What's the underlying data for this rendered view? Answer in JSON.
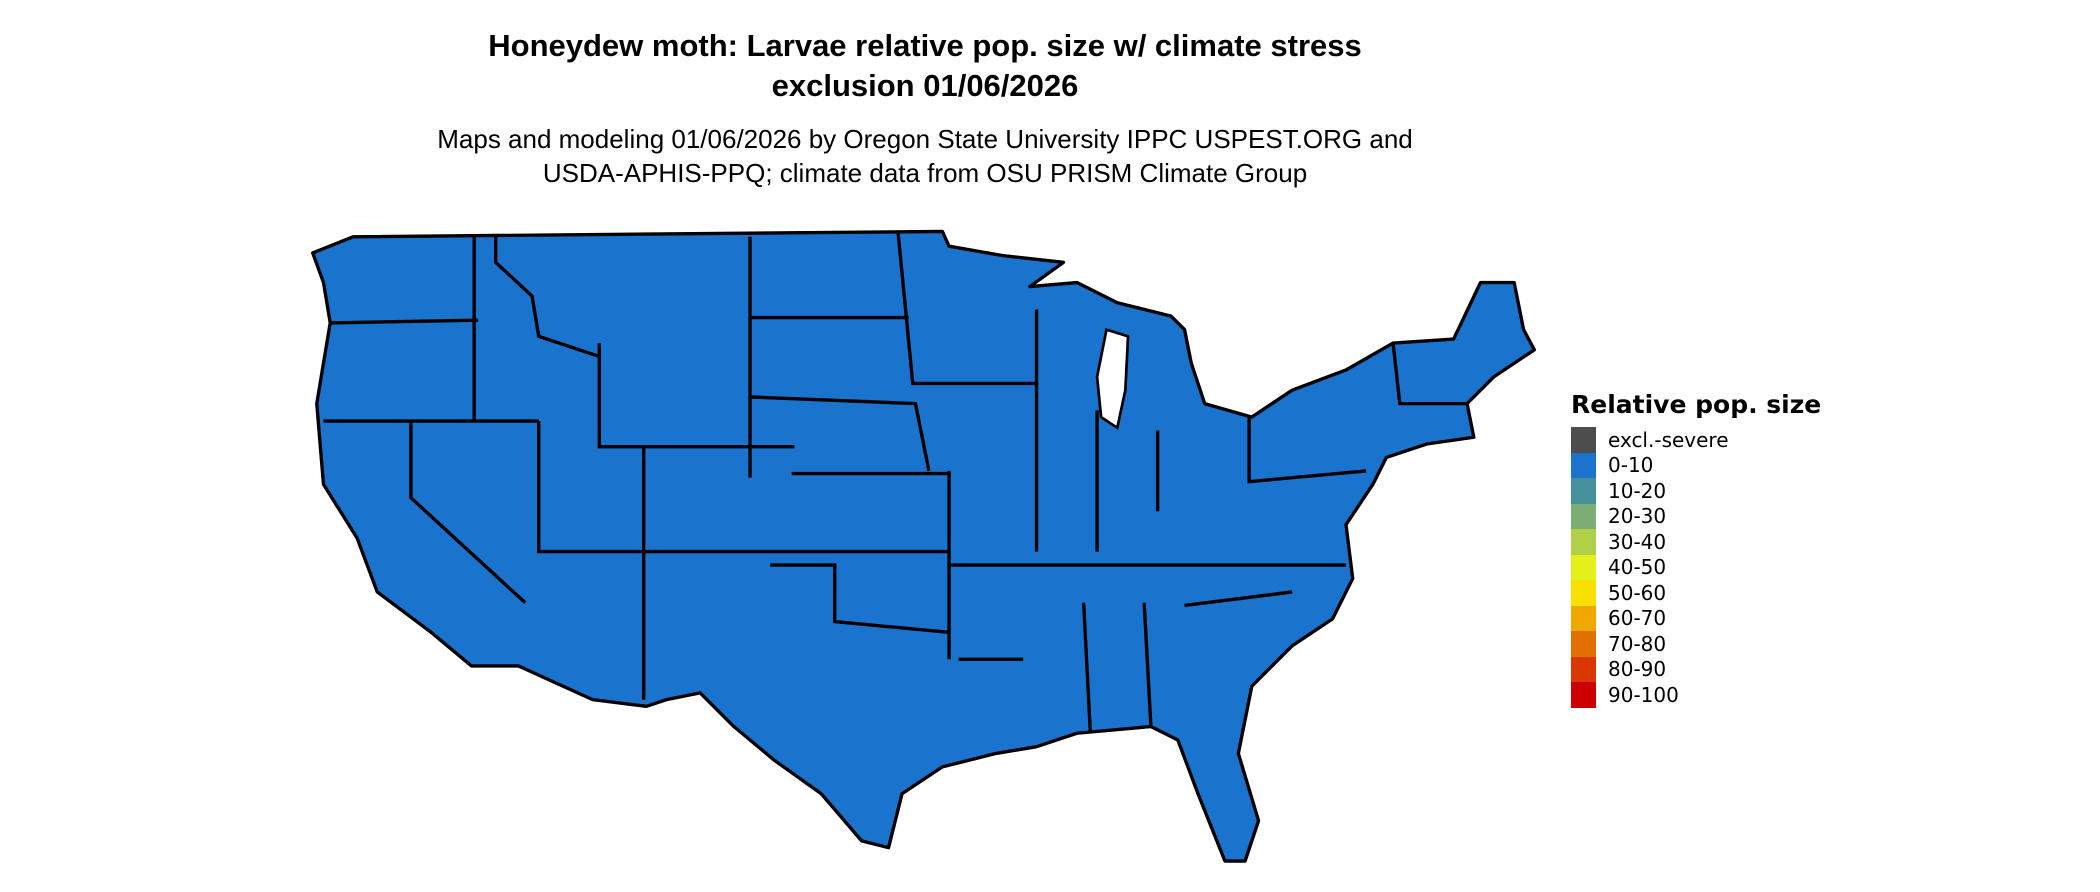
{
  "title_line1": "Honeydew moth: Larvae relative pop. size w/ climate stress",
  "title_line2": "exclusion 01/06/2026",
  "subtitle_line1": "Maps and modeling 01/06/2026 by Oregon State University IPPC USPEST.ORG and",
  "subtitle_line2": "USDA-APHIS-PPQ; climate data from OSU PRISM Climate Group",
  "map_fill_class": "0-10",
  "map_fill_color": "#1a73cc",
  "legend": {
    "title": "Relative pop. size",
    "items": [
      {
        "label": "excl.-severe",
        "color": "#4d4d4d"
      },
      {
        "label": "0-10",
        "color": "#1a73cc"
      },
      {
        "label": "10-20",
        "color": "#46909c"
      },
      {
        "label": "20-30",
        "color": "#7bae74"
      },
      {
        "label": "30-40",
        "color": "#b0d048"
      },
      {
        "label": "40-50",
        "color": "#e3f01a"
      },
      {
        "label": "50-60",
        "color": "#f8e000"
      },
      {
        "label": "60-70",
        "color": "#eea800"
      },
      {
        "label": "70-80",
        "color": "#e27000"
      },
      {
        "label": "80-90",
        "color": "#d93800"
      },
      {
        "label": "90-100",
        "color": "#cc0000"
      }
    ]
  }
}
